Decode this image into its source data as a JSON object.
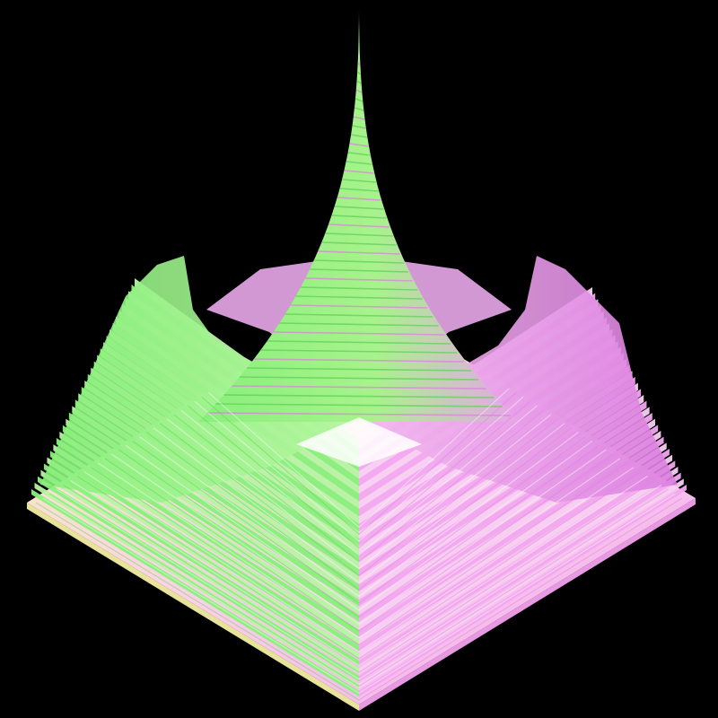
{
  "scene": {
    "subject": "isometric-3d-surface",
    "style": "stepped-voxel-terraces",
    "background_color": "#000000",
    "palette": {
      "green": "#88f07a",
      "green_dark": "#5ccf55",
      "pink": "#f2a8f0",
      "magenta": "#dc7fe0",
      "cream": "#f7f4b8",
      "blush": "#fbd0e8",
      "outline": "#ffffff"
    },
    "features": {
      "central_spike": true,
      "corner_ridges": 4,
      "base_plate": true
    }
  }
}
